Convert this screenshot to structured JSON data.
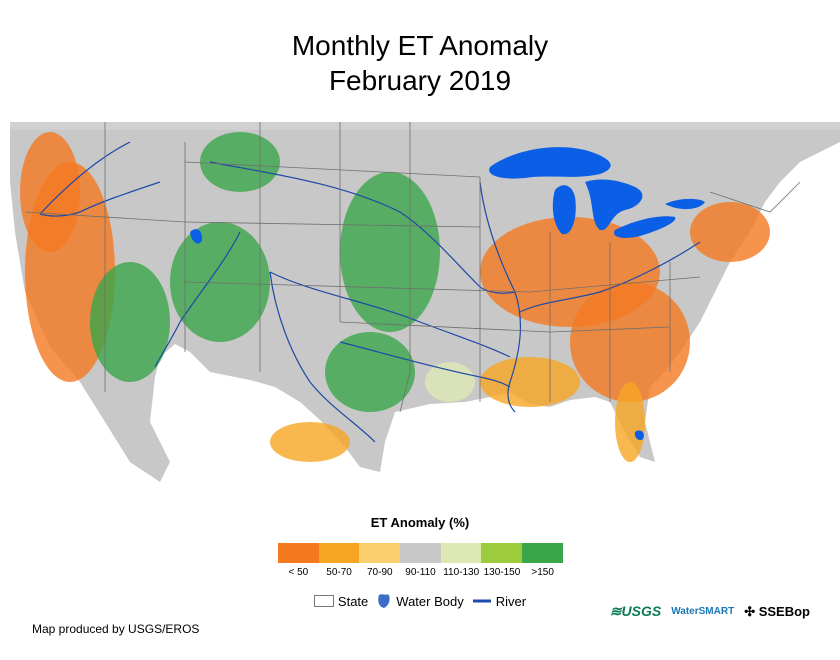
{
  "title": {
    "line1": "Monthly ET Anomaly",
    "line2": "February 2019"
  },
  "legend": {
    "title": "ET Anomaly (%)",
    "classes": [
      {
        "label": "< 50",
        "color": "#f47920"
      },
      {
        "label": "50-70",
        "color": "#f6a623"
      },
      {
        "label": "70-90",
        "color": "#fccf6e"
      },
      {
        "label": "90-110",
        "color": "#c8c8c8"
      },
      {
        "label": "110-130",
        "color": "#dde9b4"
      },
      {
        "label": "130-150",
        "color": "#9ccc3c"
      },
      {
        "label": ">150",
        "color": "#3aa64a"
      }
    ]
  },
  "reference": {
    "state": "State",
    "water": "Water Body",
    "river": "River"
  },
  "colors": {
    "land": "#c8c8c8",
    "water": "#0a5fe6",
    "river": "#1f4aa8",
    "border": "#6f6f6f"
  },
  "credit": "Map produced by USGS/EROS",
  "logos": {
    "usgs": "USGS",
    "smart": "WaterSMART",
    "ssebop": "SSEBop"
  }
}
